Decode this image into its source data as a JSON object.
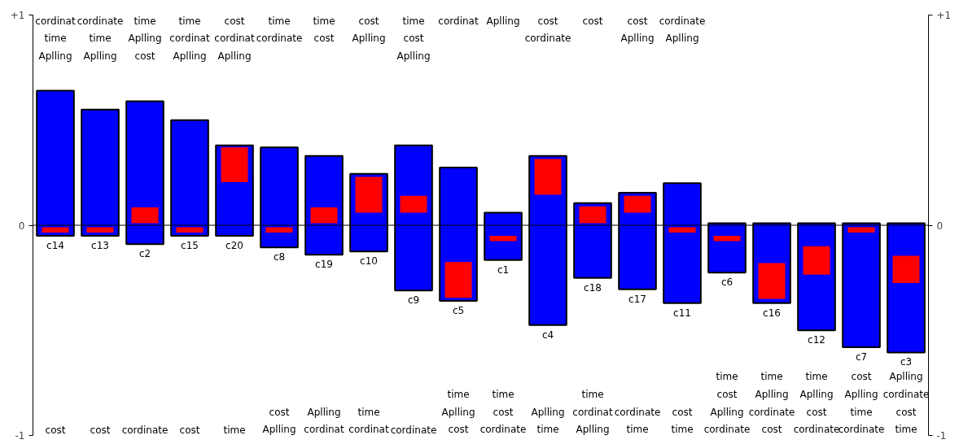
{
  "chart_data": {
    "type": "bar",
    "categories": [
      "c14",
      "c13",
      "c2",
      "c15",
      "c20",
      "c8",
      "c19",
      "c10",
      "c9",
      "c5",
      "c1",
      "c4",
      "c18",
      "c17",
      "c11",
      "c6",
      "c16",
      "c12",
      "c7",
      "c3"
    ],
    "series": [
      {
        "color": "#0000ff",
        "base": [
          -0.05,
          -0.05,
          -0.09,
          -0.05,
          -0.05,
          -0.105,
          -0.14,
          -0.125,
          -0.31,
          -0.36,
          -0.165,
          -0.475,
          -0.25,
          -0.305,
          -0.37,
          -0.225,
          -0.37,
          -0.5,
          -0.58,
          -0.605
        ],
        "values": [
          0.69,
          0.6,
          0.68,
          0.55,
          0.43,
          0.475,
          0.47,
          0.37,
          0.69,
          0.635,
          0.225,
          0.805,
          0.355,
          0.46,
          0.57,
          0.235,
          0.38,
          0.51,
          0.59,
          0.615
        ]
      },
      {
        "color": "#ff0000",
        "base": [
          -0.035,
          -0.035,
          0.01,
          -0.035,
          0.205,
          -0.035,
          0.01,
          0.06,
          0.06,
          -0.345,
          -0.075,
          0.145,
          0.01,
          0.06,
          -0.035,
          -0.075,
          -0.35,
          -0.235,
          -0.035,
          -0.275
        ],
        "values": [
          0.025,
          0.025,
          0.075,
          0.025,
          0.165,
          0.025,
          0.075,
          0.17,
          0.08,
          0.17,
          0.025,
          0.17,
          0.08,
          0.08,
          0.025,
          0.025,
          0.17,
          0.135,
          0.025,
          0.13
        ]
      }
    ],
    "ylim": [
      -1,
      1
    ],
    "yticks": [
      {
        "value": -1,
        "label": "-1"
      },
      0,
      {
        "value": 1,
        "label": "+1"
      }
    ],
    "y2lim": [
      -1,
      1
    ],
    "y2ticks": [
      {
        "value": -1,
        "label": "-1"
      },
      0,
      {
        "value": 1,
        "label": "+1"
      }
    ],
    "ref_lines": [
      {
        "axis": "y",
        "value": 0,
        "color": "#000000"
      }
    ],
    "annotations": [
      "cordinat\ntime\nAplling",
      "cordinate\ntime\nAplling",
      "time\nAplling\ncost",
      "time\ncordinat\nAplling",
      "cost\ncordinat\nAplling",
      "time\ncordinate",
      "time\ncost",
      "cost\nAplling",
      "time\ncost\nAplling",
      "cordinat",
      "Aplling",
      "cost\ncordinate",
      "cost",
      "cost\nAplling",
      "cordinate\nAplling",
      null,
      null,
      null,
      null,
      null,
      "cost",
      "cost",
      "cordinate",
      "cost",
      "time",
      "cost\nAplling",
      "Aplling\ncordinat",
      "time\ncordinat",
      "cordinate",
      "time\nAplling\ncost",
      "time\ncost\ncordinate",
      "Aplling\ntime",
      "time\ncordinat\nAplling",
      "cordinate\ntime",
      "cost\ntime",
      "time\ncost\nAplling\ncordinate",
      "time\nAplling\ncordinate\ncost",
      "time\nAplling\ncost\ncordinate",
      "cost\nAplling\ntime\ncordinate",
      "Aplling\ncordinate\ncost\ntime"
    ]
  }
}
